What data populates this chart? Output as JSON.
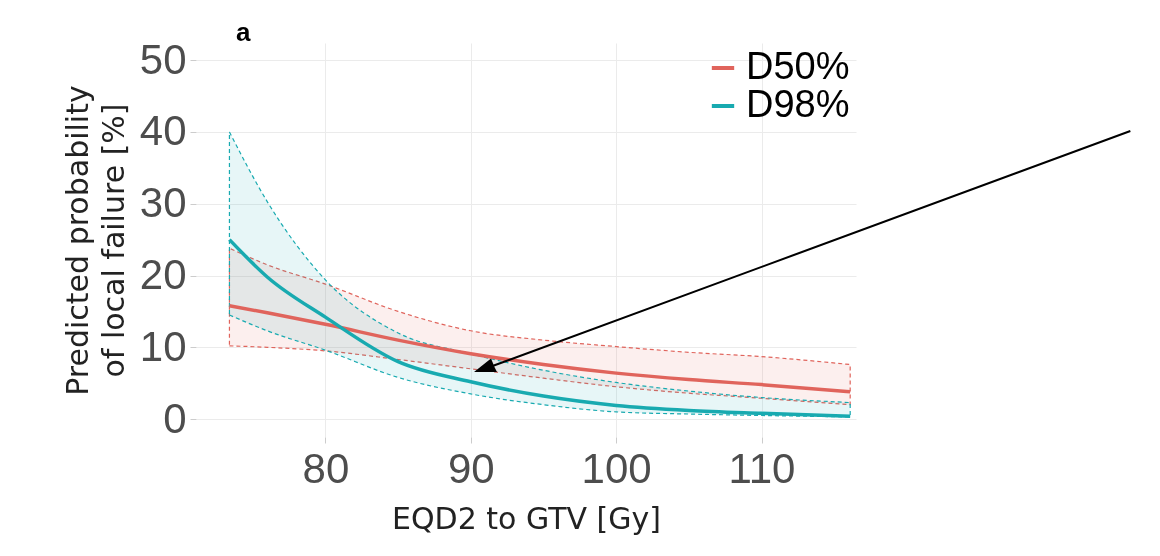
{
  "chart_data": {
    "type": "line",
    "xlabel": "EQD2 to GTV [Gy]",
    "ylabel": "Predicted probability\nof local failure [%]",
    "annotations": [
      "a"
    ],
    "x": [
      73.4,
      76,
      80,
      85,
      90,
      95,
      100,
      105,
      110,
      116.1
    ],
    "series": [
      {
        "name": "D50%",
        "color": "#e0645c",
        "values": [
          15.8,
          14.8,
          13.2,
          11,
          9.1,
          7.6,
          6.4,
          5.5,
          4.8,
          3.8
        ],
        "lower": [
          10.2,
          10,
          9.5,
          8.3,
          7.0,
          5.7,
          4.5,
          3.6,
          2.9,
          2.0
        ],
        "upper": [
          23.8,
          21.5,
          18.8,
          15,
          12.3,
          11,
          10.1,
          9.3,
          8.7,
          7.6
        ]
      },
      {
        "name": "D98%",
        "color": "#18aab0",
        "values": [
          25,
          19.8,
          14.2,
          8.0,
          5.2,
          3.2,
          1.9,
          1.2,
          0.8,
          0.4
        ],
        "lower": [
          14.5,
          12.3,
          9.6,
          5.8,
          3.5,
          2.0,
          1.0,
          0.7,
          0.5,
          0.3
        ],
        "upper": [
          40,
          30.3,
          19.4,
          12,
          9.1,
          6.8,
          5.1,
          3.9,
          3,
          2.3
        ]
      }
    ],
    "xlim": [
      71.1,
      116.5
    ],
    "xticks": [
      80,
      90,
      100,
      110
    ],
    "ylim": [
      -2.5,
      52.4
    ],
    "yticks": [
      0,
      10,
      20,
      30,
      40,
      50
    ],
    "grid": true,
    "legend": "top right",
    "marker": "none",
    "line_style": "solid"
  }
}
